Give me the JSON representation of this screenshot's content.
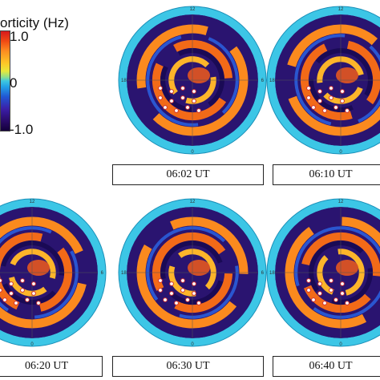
{
  "colorbar": {
    "title": "orticity (Hz)",
    "ticks": [
      "1.0",
      "0",
      "-1.0"
    ],
    "colors": [
      "#d7191c",
      "#fc8d21",
      "#3fc8e0",
      "#2156d4",
      "#14003a"
    ]
  },
  "chart_data": {
    "type": "heatmap",
    "title": "",
    "quantity": "vorticity (Hz)",
    "range": [
      -1.0,
      1.0
    ],
    "dial_labels": [
      "12",
      "18",
      "6",
      "0"
    ],
    "panels": [
      {
        "time": "06:02 UT"
      },
      {
        "time": "06:10 UT"
      },
      {
        "time": "06:20 UT"
      },
      {
        "time": "06:30 UT"
      },
      {
        "time": "06:40 UT"
      }
    ]
  }
}
